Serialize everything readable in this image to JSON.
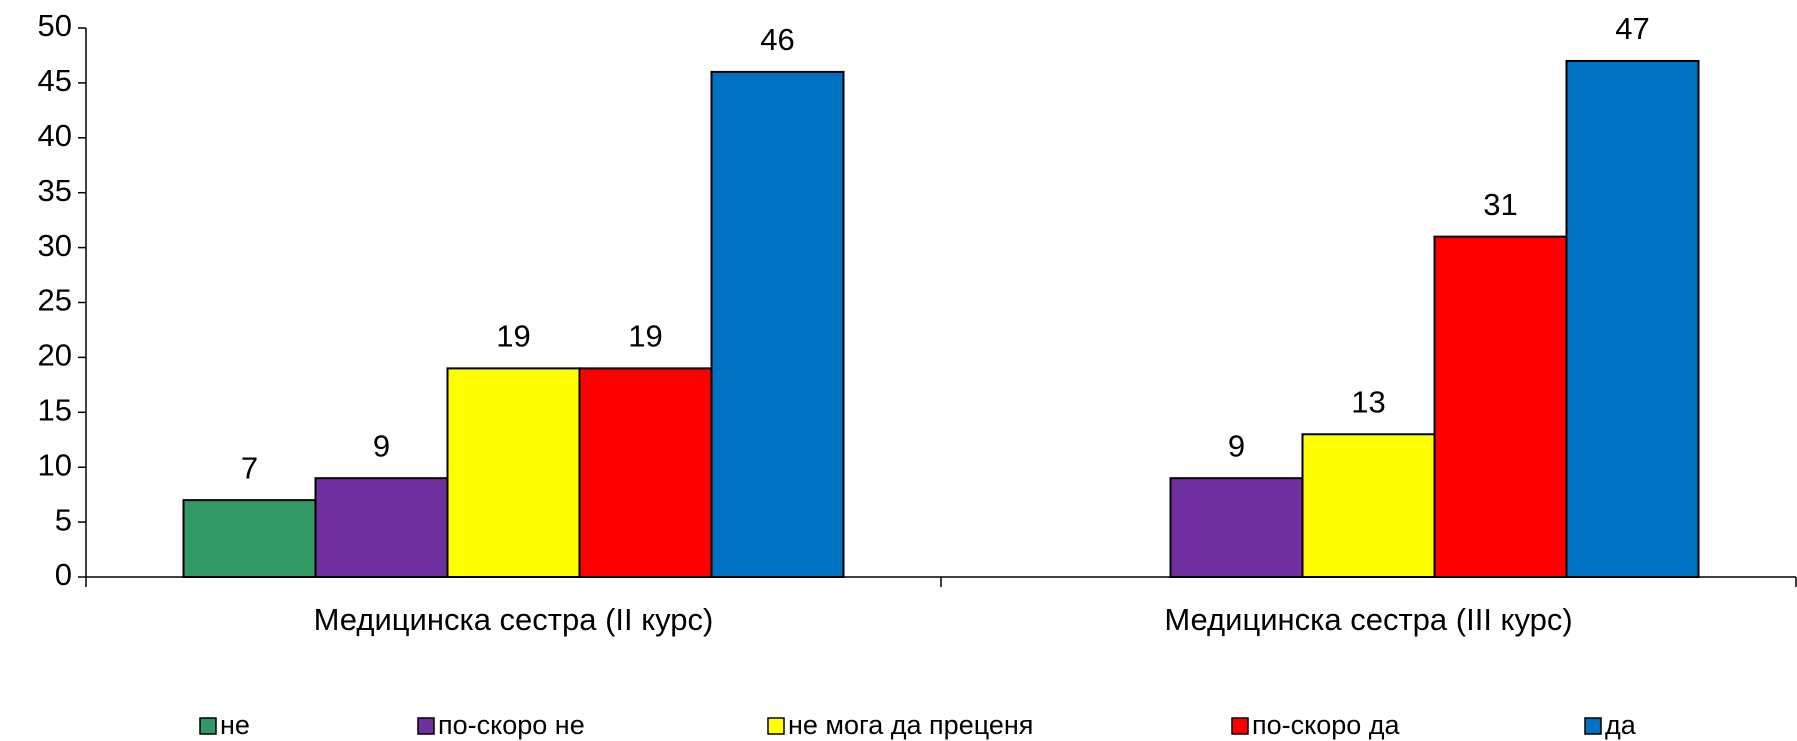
{
  "chart_data": {
    "type": "bar",
    "categories": [
      "Медицинска сестра (II курс)",
      "Медицинска сестра (III курс)"
    ],
    "series": [
      {
        "name": "не",
        "color": "#339966",
        "values": [
          7,
          null
        ]
      },
      {
        "name": "по-скоро не",
        "color": "#7030a0",
        "values": [
          9,
          9
        ]
      },
      {
        "name": "не мога да преценя",
        "color": "#ffff00",
        "values": [
          19,
          13
        ]
      },
      {
        "name": "по-скоро да",
        "color": "#ff0000",
        "values": [
          19,
          31
        ]
      },
      {
        "name": "да",
        "color": "#0070c0",
        "values": [
          46,
          47
        ]
      }
    ],
    "ylim": [
      0,
      50
    ],
    "yticks": [
      0,
      5,
      10,
      15,
      20,
      25,
      30,
      35,
      40,
      45,
      50
    ],
    "legend": "bottom"
  }
}
